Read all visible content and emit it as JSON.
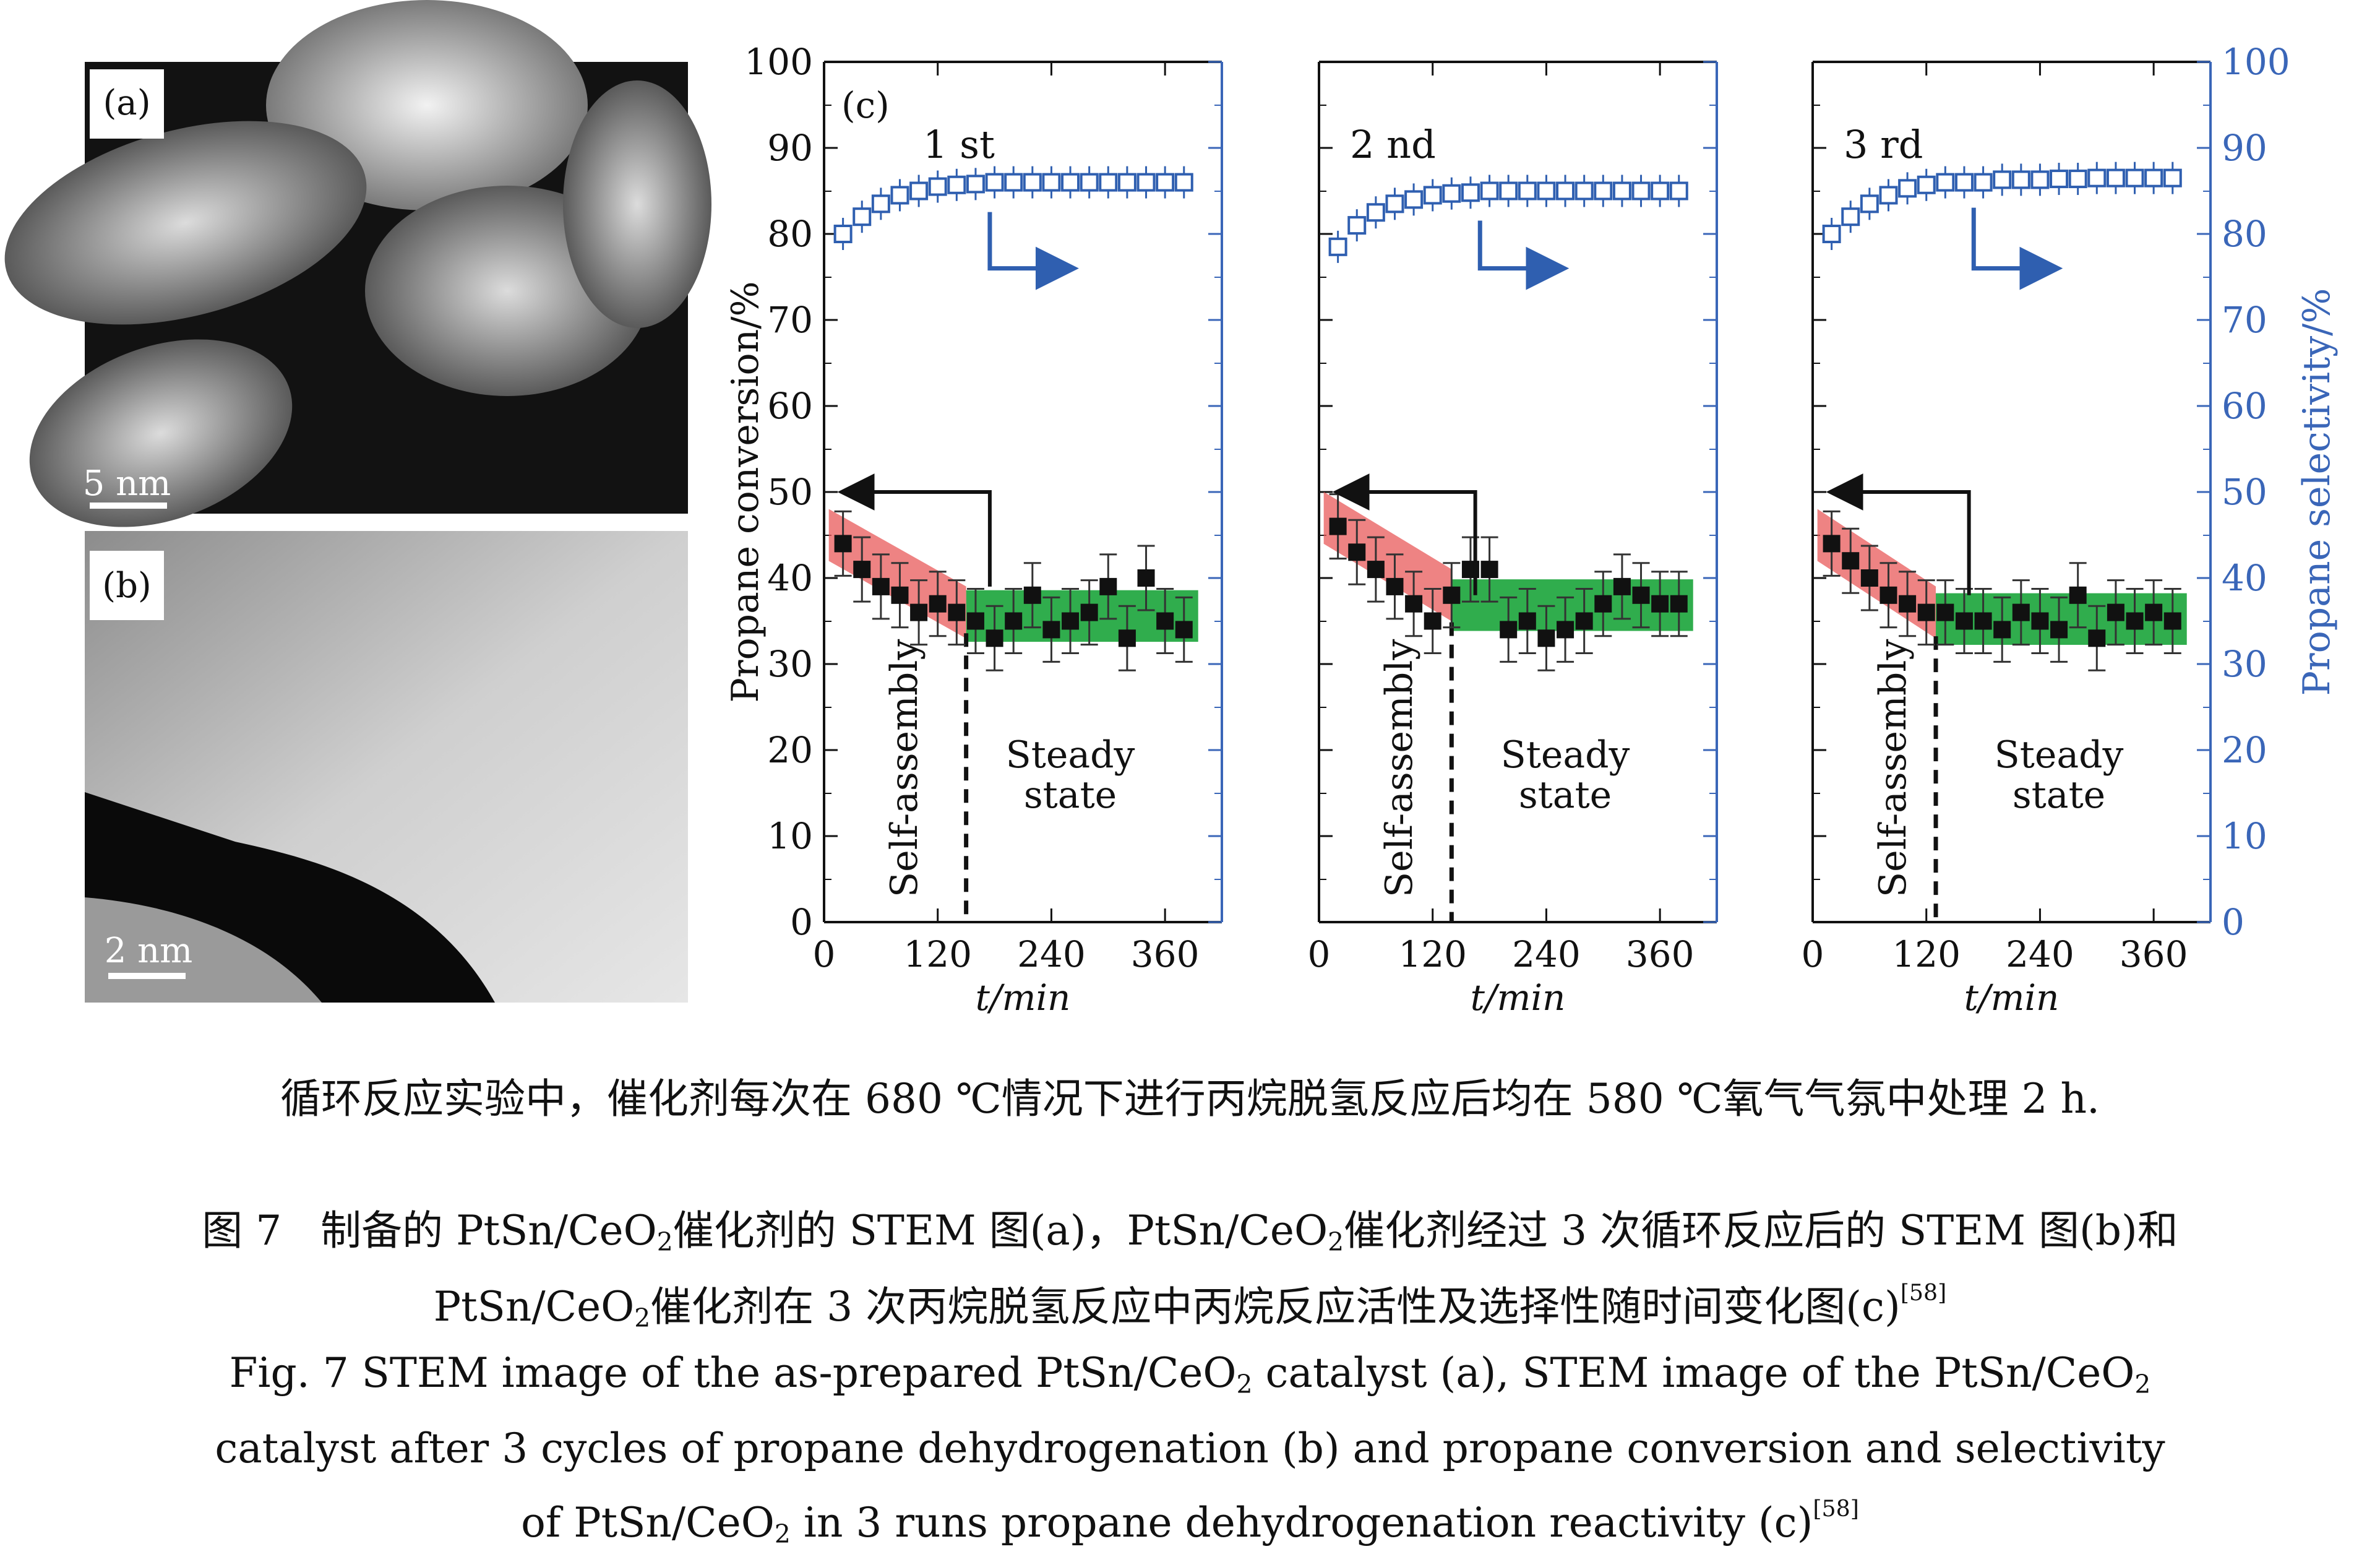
{
  "panels": {
    "a": {
      "label": "(a)",
      "scale_label": "5 nm"
    },
    "b": {
      "label": "(b)",
      "scale_label": "2 nm"
    },
    "c": {
      "label": "(c)"
    }
  },
  "colors": {
    "conversion": "#111111",
    "selectivity": "#2f5fb0",
    "self_assembly_band": "#e8595a",
    "steady_band": "#19a43a",
    "axis_right": "#3a66b8"
  },
  "chart_data": {
    "type": "scatter",
    "panel_label": "(c)",
    "xlabel": "t/min",
    "ylabel_left": "Propane conversion/%",
    "ylabel_right": "Propane selectivity/%",
    "xlim": [
      0,
      420
    ],
    "ylim": [
      0,
      100
    ],
    "x_ticks": [
      0,
      120,
      240,
      360
    ],
    "y_ticks": [
      0,
      10,
      20,
      30,
      40,
      50,
      60,
      70,
      80,
      90,
      100
    ],
    "annotations": {
      "self_assembly": "Self-assembly",
      "steady_line1": "Steady",
      "steady_line2": "state"
    },
    "runs": [
      {
        "name": "1 st",
        "transition_t": 150,
        "conversion": {
          "x": [
            20,
            40,
            60,
            80,
            100,
            120,
            140,
            160,
            180,
            200,
            220,
            240,
            260,
            280,
            300,
            320,
            340,
            360,
            380
          ],
          "y": [
            44,
            41,
            39,
            38,
            36,
            37,
            36,
            35,
            33,
            35,
            38,
            34,
            35,
            36,
            39,
            33,
            40,
            35,
            34
          ]
        },
        "selectivity": {
          "x": [
            20,
            40,
            60,
            80,
            100,
            120,
            140,
            160,
            180,
            200,
            220,
            240,
            260,
            280,
            300,
            320,
            340,
            360,
            380
          ],
          "y": [
            80,
            82,
            83.5,
            84.5,
            85,
            85.5,
            85.7,
            85.8,
            86,
            86,
            86,
            86,
            86,
            86,
            86,
            86,
            86,
            86,
            86
          ]
        }
      },
      {
        "name": "2 nd",
        "transition_t": 140,
        "conversion": {
          "x": [
            20,
            40,
            60,
            80,
            100,
            120,
            140,
            160,
            180,
            200,
            220,
            240,
            260,
            280,
            300,
            320,
            340,
            360,
            380
          ],
          "y": [
            46,
            43,
            41,
            39,
            37,
            35,
            38,
            41,
            41,
            34,
            35,
            33,
            34,
            35,
            37,
            39,
            38,
            37,
            37
          ]
        },
        "selectivity": {
          "x": [
            20,
            40,
            60,
            80,
            100,
            120,
            140,
            160,
            180,
            200,
            220,
            240,
            260,
            280,
            300,
            320,
            340,
            360,
            380
          ],
          "y": [
            78.5,
            81,
            82.5,
            83.5,
            84,
            84.5,
            84.7,
            84.8,
            85,
            85,
            85,
            85,
            85,
            85,
            85,
            85,
            85,
            85,
            85
          ]
        }
      },
      {
        "name": "3 rd",
        "transition_t": 130,
        "conversion": {
          "x": [
            20,
            40,
            60,
            80,
            100,
            120,
            140,
            160,
            180,
            200,
            220,
            240,
            260,
            280,
            300,
            320,
            340,
            360,
            380
          ],
          "y": [
            44,
            42,
            40,
            38,
            37,
            36,
            36,
            35,
            35,
            34,
            36,
            35,
            34,
            38,
            33,
            36,
            35,
            36,
            35
          ]
        },
        "selectivity": {
          "x": [
            20,
            40,
            60,
            80,
            100,
            120,
            140,
            160,
            180,
            200,
            220,
            240,
            260,
            280,
            300,
            320,
            340,
            360,
            380
          ],
          "y": [
            80,
            82,
            83.5,
            84.5,
            85.3,
            85.7,
            86,
            86,
            86,
            86.3,
            86.3,
            86.3,
            86.4,
            86.4,
            86.5,
            86.5,
            86.5,
            86.5,
            86.5
          ]
        }
      }
    ]
  },
  "caption": {
    "cn_note": "循环反应实验中，催化剂每次在 680 ℃情况下进行丙烷脱氢反应后均在 580 ℃氧气气氛中处理 2 h.",
    "cn_line1_prefix": "图 7",
    "cn_line1": "制备的 PtSn/CeO",
    "cn_line1_b": "催化剂的 STEM 图(a)，PtSn/CeO",
    "cn_line1_c": "催化剂经过 3 次循环反应后的 STEM 图(b)和",
    "cn_line2_a": "PtSn/CeO",
    "cn_line2_b": "催化剂在 3 次丙烷脱氢反应中丙烷反应活性及选择性随时间变化图(c)",
    "ref": "[58]",
    "sub2": "2",
    "en_line1_a": "Fig. 7   STEM image of the as-prepared PtSn/CeO",
    "en_line1_b": " catalyst (a), STEM image of the PtSn/CeO",
    "en_line2": "catalyst after 3 cycles of propane dehydrogenation (b) and propane conversion and selectivity",
    "en_line3_a": "of PtSn/CeO",
    "en_line3_b": " in 3 runs propane dehydrogenation reactivity (c)"
  }
}
